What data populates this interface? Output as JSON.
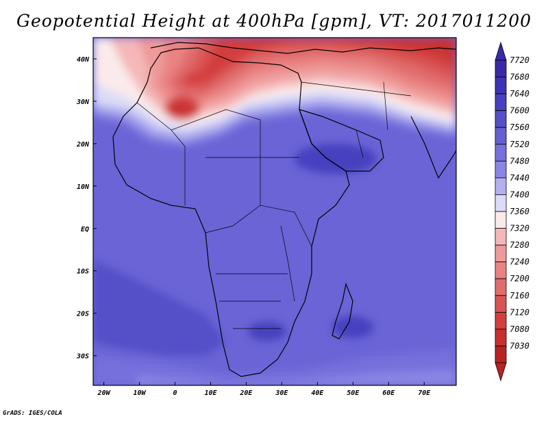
{
  "title": "Geopotential Height at 400hPa [gpm], VT: 2017011200",
  "credit": "GrADS: IGES/COLA",
  "map": {
    "lon_range": [
      -23,
      79
    ],
    "lat_range": [
      -37,
      45
    ],
    "lon_ticks": [
      {
        "value": -20,
        "label": "20W"
      },
      {
        "value": -10,
        "label": "10W"
      },
      {
        "value": 0,
        "label": "0"
      },
      {
        "value": 10,
        "label": "10E"
      },
      {
        "value": 20,
        "label": "20E"
      },
      {
        "value": 30,
        "label": "30E"
      },
      {
        "value": 40,
        "label": "40E"
      },
      {
        "value": 50,
        "label": "50E"
      },
      {
        "value": 60,
        "label": "60E"
      },
      {
        "value": 70,
        "label": "70E"
      }
    ],
    "lat_ticks": [
      {
        "value": 40,
        "label": "40N"
      },
      {
        "value": 30,
        "label": "30N"
      },
      {
        "value": 20,
        "label": "20N"
      },
      {
        "value": 10,
        "label": "10N"
      },
      {
        "value": 0,
        "label": "EQ"
      },
      {
        "value": -10,
        "label": "10S"
      },
      {
        "value": -20,
        "label": "20S"
      },
      {
        "value": -30,
        "label": "30S"
      }
    ]
  },
  "colorbar": {
    "levels": [
      {
        "label": "7720",
        "color": "#3a2aa8"
      },
      {
        "label": "7680",
        "color": "#3e33b4"
      },
      {
        "label": "7640",
        "color": "#4740bf"
      },
      {
        "label": "7600",
        "color": "#5550c8"
      },
      {
        "label": "7560",
        "color": "#6460d2"
      },
      {
        "label": "7520",
        "color": "#7670dc"
      },
      {
        "label": "7480",
        "color": "#8a85e4"
      },
      {
        "label": "7440",
        "color": "#b2b0f0"
      },
      {
        "label": "7400",
        "color": "#dcdcf8"
      },
      {
        "label": "7360",
        "color": "#faeaea"
      },
      {
        "label": "7320",
        "color": "#f4b8b8"
      },
      {
        "label": "7280",
        "color": "#ef9a9a"
      },
      {
        "label": "7240",
        "color": "#e98383"
      },
      {
        "label": "7200",
        "color": "#e06c6c"
      },
      {
        "label": "7160",
        "color": "#d95454"
      },
      {
        "label": "7120",
        "color": "#d33e3e"
      },
      {
        "label": "7080",
        "color": "#c83030"
      },
      {
        "label": "7030",
        "color": "#b82323"
      }
    ]
  }
}
